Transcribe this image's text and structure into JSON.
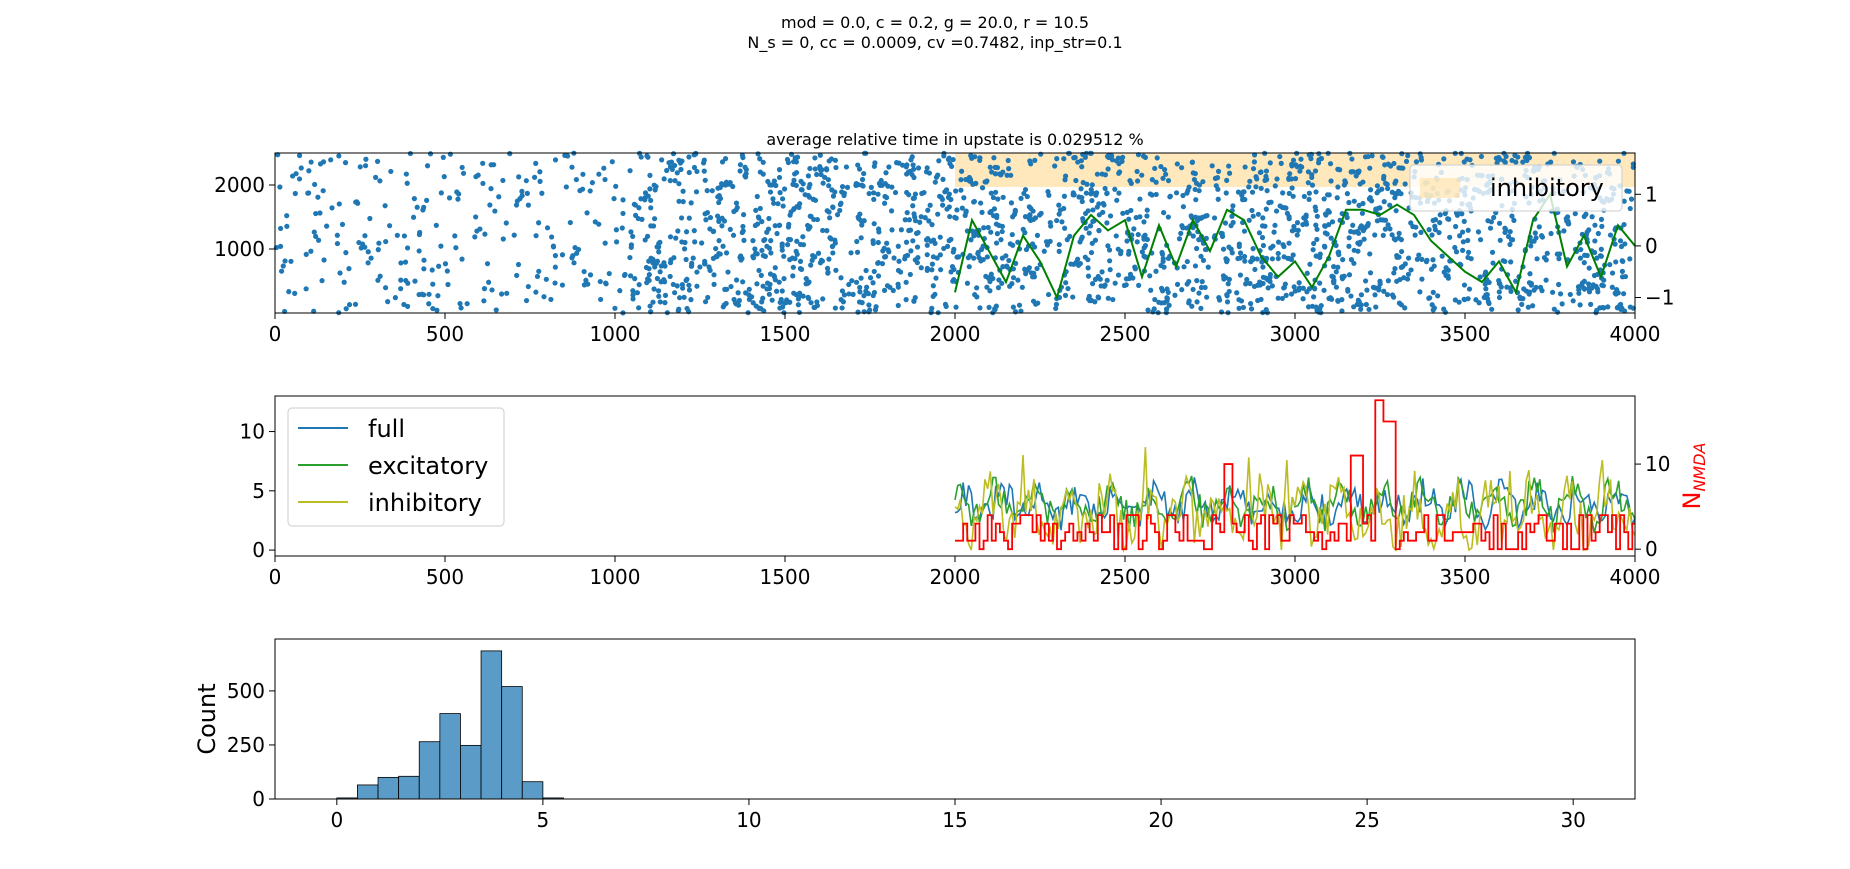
{
  "suptitle": {
    "line1": "mod = 0.0, c = 0.2, g = 20.0, r = 10.5",
    "line2": "N_s = 0, cc = 0.0009, cv =0.7482, inp_str=0.1"
  },
  "colors": {
    "raster": "#1f77b4",
    "full": "#1f77b4",
    "excitatory": "#2ca02c",
    "inhibitory": "#bcbd22",
    "nmda": "#ff0000",
    "osc": "#008000",
    "upstate": "#ffe0a0",
    "hist": "#5b9bc8"
  },
  "chart_data": [
    {
      "type": "scatter",
      "title": "average relative time in upstate is 0.029512 %",
      "xlim": [
        0,
        4000
      ],
      "ylim": [
        0,
        2500
      ],
      "xticks": [
        "0",
        "500",
        "1000",
        "1500",
        "2000",
        "2500",
        "3000",
        "3500",
        "4000"
      ],
      "yticks": [
        "1000",
        "2000"
      ],
      "y2ticks": [
        "1",
        "0",
        "−1"
      ],
      "y2lim": [
        -1.3,
        1.8
      ],
      "legend": {
        "location": "top-right",
        "entries": [
          "inhibitory"
        ]
      },
      "upstate_regions": [
        [
          2000,
          2600
        ],
        [
          2600,
          3100
        ],
        [
          3100,
          3800
        ],
        [
          3800,
          4000
        ]
      ],
      "oscillation": {
        "x": [
          2000,
          2050,
          2100,
          2150,
          2200,
          2250,
          2300,
          2350,
          2400,
          2450,
          2500,
          2550,
          2600,
          2650,
          2700,
          2750,
          2800,
          2850,
          2900,
          2950,
          3000,
          3050,
          3100,
          3150,
          3200,
          3250,
          3300,
          3350,
          3400,
          3450,
          3500,
          3550,
          3600,
          3650,
          3700,
          3750,
          3800,
          3850,
          3900,
          3950,
          4000
        ],
        "y": [
          -0.9,
          0.5,
          -0.1,
          -0.7,
          0.2,
          -0.3,
          -1.0,
          0.2,
          0.6,
          0.3,
          0.5,
          -0.6,
          0.4,
          -0.4,
          0.5,
          -0.1,
          0.7,
          0.5,
          -0.2,
          -0.6,
          -0.3,
          -0.8,
          -0.2,
          0.7,
          0.7,
          0.6,
          0.8,
          0.6,
          0.1,
          -0.2,
          -0.5,
          -0.7,
          -0.3,
          -0.9,
          0.5,
          1.0,
          -0.4,
          0.2,
          -0.6,
          0.4,
          0.0
        ]
      }
    },
    {
      "type": "line",
      "xlim": [
        0,
        4000
      ],
      "ylim": [
        -0.5,
        13
      ],
      "xticks": [
        "0",
        "500",
        "1000",
        "1500",
        "2000",
        "2500",
        "3000",
        "3500",
        "4000"
      ],
      "yticks": [
        "0",
        "5",
        "10"
      ],
      "y2ticks": [
        "0",
        "10"
      ],
      "y2lim": [
        -0.8,
        18
      ],
      "y2label": "N_NMDA",
      "legend": {
        "location": "top-left",
        "entries": [
          "full",
          "excitatory",
          "inhibitory"
        ]
      },
      "series": [
        {
          "name": "full",
          "x_start": 2000,
          "x_end": 4000,
          "mean": 3.8,
          "amp": 1.6
        },
        {
          "name": "excitatory",
          "x_start": 2000,
          "x_end": 4000,
          "mean": 3.9,
          "amp": 1.7
        },
        {
          "name": "inhibitory",
          "x_start": 2000,
          "x_end": 4000,
          "mean": 3.0,
          "amp": 2.6
        }
      ],
      "nmda_peaks": [
        [
          2800,
          10
        ],
        [
          3175,
          11
        ],
        [
          3250,
          17.5
        ],
        [
          3270,
          15
        ]
      ]
    },
    {
      "type": "bar",
      "xlim": [
        -1.5,
        31.5
      ],
      "ylim": [
        0,
        740
      ],
      "xticks": [
        "0",
        "5",
        "10",
        "15",
        "20",
        "25",
        "30"
      ],
      "yticks": [
        "0",
        "250",
        "500"
      ],
      "ylabel": "Count",
      "bin_width": 0.5,
      "bins_x": [
        0.0,
        0.5,
        1.0,
        1.5,
        2.0,
        2.5,
        3.0,
        3.5,
        4.0,
        4.5,
        5.0
      ],
      "values": [
        5,
        65,
        100,
        105,
        265,
        395,
        248,
        685,
        520,
        80,
        5
      ]
    }
  ]
}
